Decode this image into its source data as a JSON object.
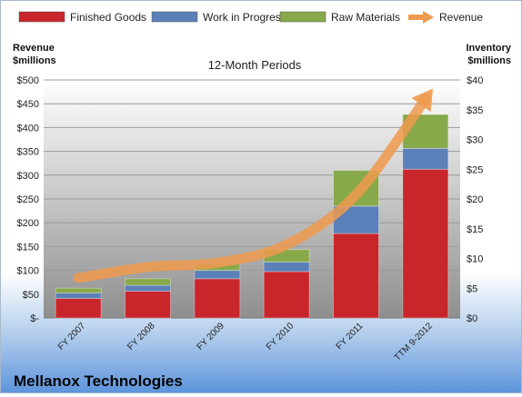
{
  "chart_data": {
    "type": "bar",
    "title": "12-Month Periods",
    "company": "Mellanox Technologies",
    "left_axis_label": [
      "Revenue",
      "$millions"
    ],
    "right_axis_label": [
      "Inventory",
      "$millions"
    ],
    "categories": [
      "FY 2007",
      "FY 2008",
      "FY 2009",
      "FY 2010",
      "FY 2011",
      "TTM 9-2012"
    ],
    "left_ticks": [
      "$-",
      "$50",
      "$100",
      "$150",
      "$200",
      "$250",
      "$300",
      "$350",
      "$400",
      "$450",
      "$500"
    ],
    "right_ticks": [
      "$0",
      "$5",
      "$10",
      "$15",
      "$20",
      "$25",
      "$30",
      "$35",
      "$40"
    ],
    "left_ylim": [
      0,
      500
    ],
    "right_ylim": [
      0,
      40
    ],
    "inventory_series": [
      {
        "name": "Finished Goods",
        "color": "#c8262b",
        "values": [
          3.3,
          4.5,
          6.6,
          7.8,
          14.2,
          25.0
        ]
      },
      {
        "name": "Work in Progress",
        "color": "#5b7fb8",
        "values": [
          0.9,
          1.0,
          1.4,
          1.6,
          4.6,
          3.5
        ]
      },
      {
        "name": "Raw Materials",
        "color": "#88a94a",
        "values": [
          0.8,
          1.1,
          1.1,
          2.1,
          6.0,
          5.7
        ]
      }
    ],
    "revenue_series": {
      "name": "Revenue",
      "color": "#f09a4e",
      "values": [
        84,
        107,
        116,
        154,
        259,
        460
      ]
    },
    "legend_position": "top",
    "grid": true
  }
}
